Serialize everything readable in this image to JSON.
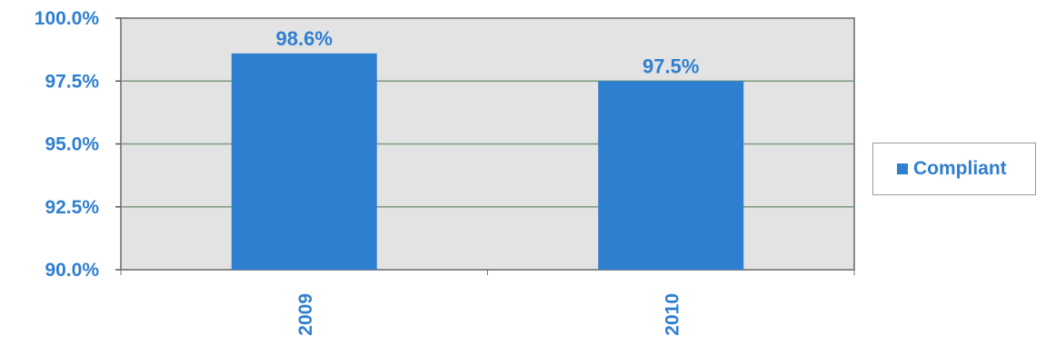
{
  "chart_data": {
    "type": "bar",
    "categories": [
      "2009",
      "2010"
    ],
    "series": [
      {
        "name": "Compliant",
        "values": [
          98.6,
          97.5
        ]
      }
    ],
    "data_labels": [
      "98.6%",
      "97.5%"
    ],
    "y_ticks": [
      90.0,
      92.5,
      95.0,
      97.5,
      100.0
    ],
    "y_tick_labels": [
      "90.0%",
      "92.5%",
      "95.0%",
      "97.5%",
      "100.0%"
    ],
    "ylim": [
      90,
      100
    ],
    "grid": true,
    "legend_position": "right",
    "colors": {
      "bar": "#2f7fd0",
      "text": "#2f7fd0",
      "plot_background": "#e3e3e3",
      "gridline": "#7a9a7a",
      "plot_border": "#8a8a8a"
    }
  }
}
